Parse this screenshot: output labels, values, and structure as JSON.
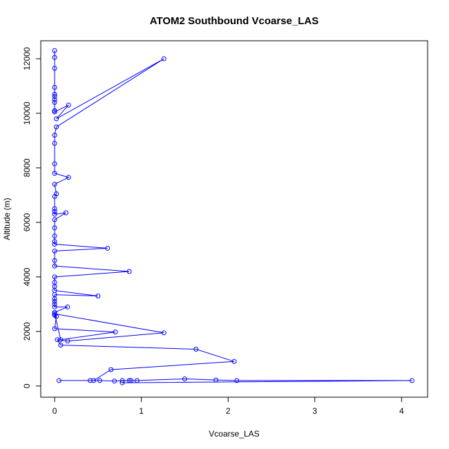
{
  "chart_data": {
    "type": "scatter",
    "title": "ATOM2 Southbound Vcoarse_LAS",
    "xlabel": "Vcoarse_LAS",
    "ylabel": "Altitude (m)",
    "xlim": [
      -0.16,
      4.3
    ],
    "ylim": [
      -410,
      12660
    ],
    "xticks": [
      0,
      1,
      2,
      3,
      4
    ],
    "yticks": [
      0,
      2000,
      4000,
      6000,
      8000,
      10000,
      12000
    ],
    "grid": false,
    "color": "#0000ff",
    "series": [
      {
        "markers": "open-circle",
        "connected": true,
        "x": [
          0,
          0,
          0,
          0,
          0,
          0,
          0,
          0,
          0,
          0,
          0.16,
          0.02,
          1.26,
          0.02,
          0,
          0,
          0,
          0,
          0.16,
          0,
          0.02,
          0,
          0,
          0,
          0,
          0.13,
          0,
          0,
          0,
          0,
          0,
          0.61,
          0,
          0,
          0,
          0.86,
          0,
          0,
          0,
          0,
          0.5,
          0,
          0,
          0,
          0,
          0,
          0.15,
          0,
          0,
          0.02,
          0,
          0.7,
          0.07,
          0,
          1.26,
          0.15,
          0.03,
          0.07,
          1.63,
          2.07,
          0.65,
          0.45,
          0.05,
          0.41,
          0.52,
          0.69,
          0.78,
          0.86,
          0.88,
          0.95,
          1.5,
          1.86,
          2.1,
          4.12,
          0.78
        ],
        "y": [
          12300,
          12050,
          11650,
          10950,
          10700,
          10620,
          10500,
          10400,
          10100,
          10050,
          10300,
          9800,
          12000,
          9500,
          9200,
          8900,
          8150,
          7800,
          7650,
          7400,
          7050,
          6950,
          6500,
          6400,
          6300,
          6350,
          6100,
          5800,
          5500,
          5300,
          5200,
          5050,
          4950,
          4600,
          4400,
          4200,
          4000,
          3800,
          3650,
          3500,
          3300,
          3350,
          3200,
          3100,
          3000,
          2900,
          2900,
          2700,
          2600,
          2550,
          2100,
          1980,
          1700,
          2650,
          1950,
          1650,
          1700,
          1500,
          1350,
          900,
          600,
          200,
          200,
          200,
          200,
          180,
          200,
          200,
          200,
          200,
          260,
          220,
          200,
          200,
          120
        ]
      }
    ]
  }
}
